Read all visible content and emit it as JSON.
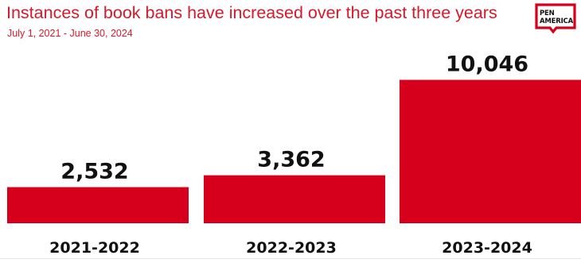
{
  "header": {
    "title": "Instances of book bans have increased over the past three years",
    "subtitle": "July 1, 2021 - June 30, 2024"
  },
  "logo": {
    "line1": "PEN",
    "line2": "AMERICA",
    "icon": "speech-bubble-logo"
  },
  "colors": {
    "bar": "#d7001c",
    "title": "#d7192a",
    "labels": "#111111"
  },
  "chart_data": {
    "type": "bar",
    "title": "Instances of book bans have increased over the past three years",
    "subtitle": "July 1, 2021 - June 30, 2024",
    "categories": [
      "2021-2022",
      "2022-2023",
      "2023-2024"
    ],
    "values": [
      2532,
      3362,
      10046
    ],
    "value_labels": [
      "2,532",
      "3,362",
      "10,046"
    ],
    "xlabel": "",
    "ylabel": "",
    "ylim": [
      0,
      12300
    ],
    "grid": false,
    "legend": "none"
  }
}
